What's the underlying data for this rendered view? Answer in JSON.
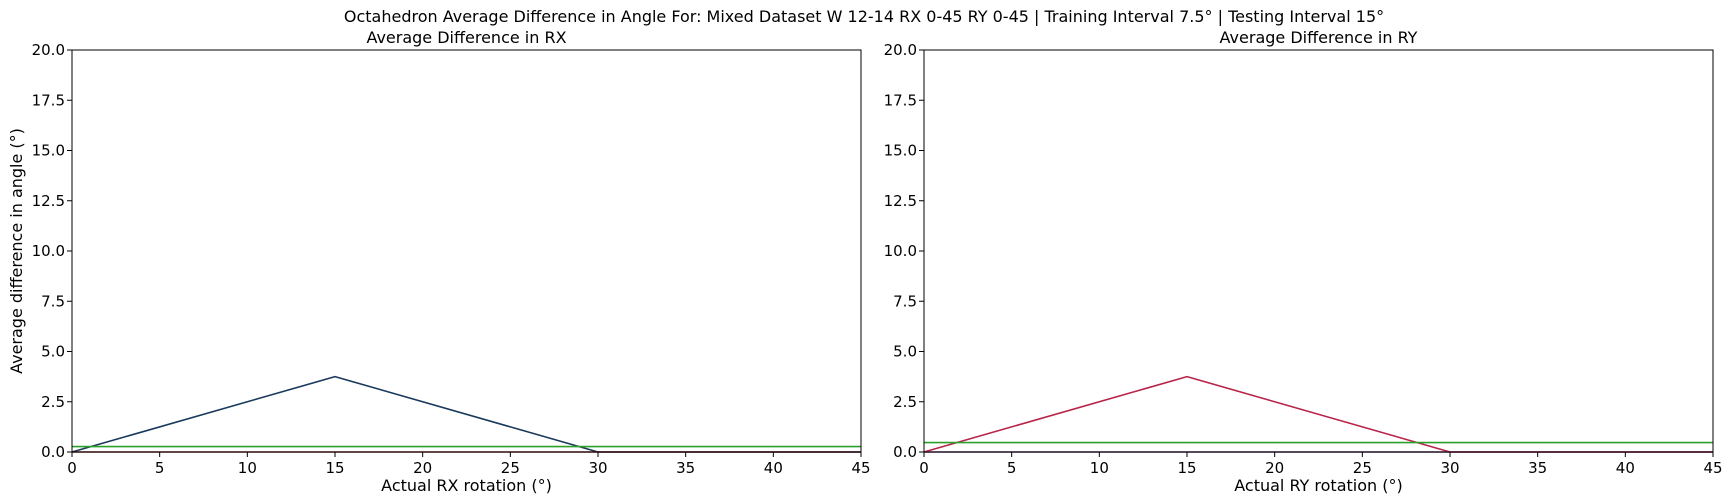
{
  "title": "Octahedron Average Difference in Angle For: Mixed Dataset W 12-14 RX 0-45 RY 0-45 | Training Interval 7.5° | Testing Interval 15°",
  "colors": {
    "dark_line": "#1a3a5c",
    "crimson_line": "#b8254a",
    "green_line": "#2ca02c",
    "zero_line": "#8b1a1a",
    "axes": "#000000"
  },
  "chart_data": [
    {
      "type": "line",
      "title": "Average Difference in RX",
      "xlabel": "Actual RX rotation (°)",
      "ylabel": "Average difference in angle (°)",
      "xlim": [
        0,
        45
      ],
      "ylim": [
        0,
        20
      ],
      "xticks": [
        0,
        5,
        10,
        15,
        20,
        25,
        30,
        35,
        40,
        45
      ],
      "yticks": [
        0.0,
        2.5,
        5.0,
        7.5,
        10.0,
        12.5,
        15.0,
        17.5,
        20.0
      ],
      "ytick_labels": [
        "0.0",
        "2.5",
        "5.0",
        "7.5",
        "10.0",
        "12.5",
        "15.0",
        "17.5",
        "20.0"
      ],
      "grid": false,
      "series": [
        {
          "color": "#1a3a5c",
          "x": [
            0,
            15,
            30,
            45
          ],
          "y": [
            0,
            3.75,
            0,
            0
          ]
        },
        {
          "color": "#8b1a1a",
          "x": [
            0,
            45
          ],
          "y": [
            0,
            0
          ]
        },
        {
          "color": "#2ca02c",
          "x": [
            0,
            45
          ],
          "y": [
            0.27,
            0.27
          ]
        }
      ]
    },
    {
      "type": "line",
      "title": "Average Difference in RY",
      "xlabel": "Actual RY rotation (°)",
      "ylabel": "",
      "xlim": [
        0,
        45
      ],
      "ylim": [
        0,
        20
      ],
      "xticks": [
        0,
        5,
        10,
        15,
        20,
        25,
        30,
        35,
        40,
        45
      ],
      "yticks": [
        0.0,
        2.5,
        5.0,
        7.5,
        10.0,
        12.5,
        15.0,
        17.5,
        20.0
      ],
      "ytick_labels": [
        "0.0",
        "2.5",
        "5.0",
        "7.5",
        "10.0",
        "12.5",
        "15.0",
        "17.5",
        "20.0"
      ],
      "grid": false,
      "series": [
        {
          "color": "#5a2a6a",
          "x": [
            0,
            45
          ],
          "y": [
            0,
            0
          ]
        },
        {
          "color": "#b8254a",
          "x": [
            0,
            15,
            30,
            45
          ],
          "y": [
            0,
            3.75,
            0,
            0
          ]
        },
        {
          "color": "#2ca02c",
          "x": [
            0,
            45
          ],
          "y": [
            0.47,
            0.47
          ]
        }
      ]
    }
  ]
}
